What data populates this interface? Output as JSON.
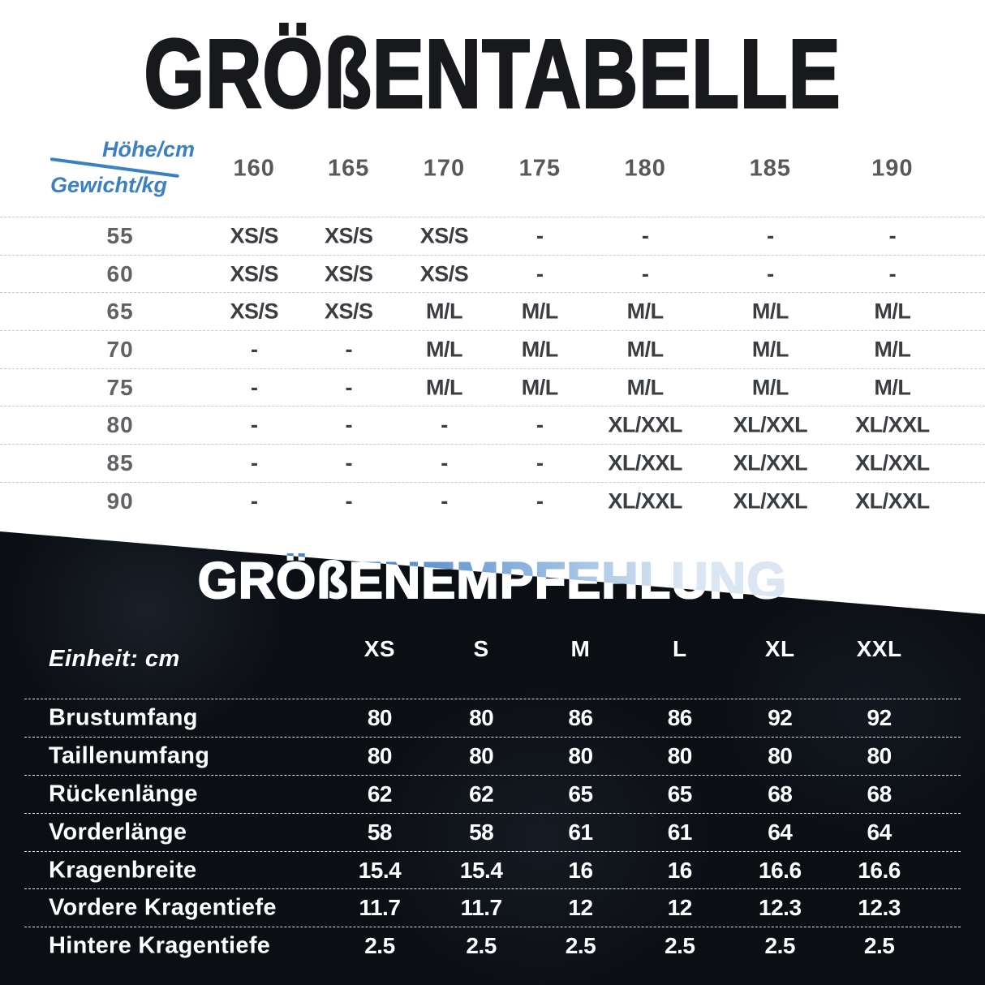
{
  "page": {
    "title": "GRÖßENTABELLE",
    "subtitle": "GRÖßENEMPFEHLUNG"
  },
  "size_table": {
    "axis_height_label": "Höhe/cm",
    "axis_weight_label": "Gewicht/kg",
    "columns": [
      "160",
      "165",
      "170",
      "175",
      "180",
      "185",
      "190"
    ],
    "rows": [
      {
        "label": "55",
        "values": [
          "XS/S",
          "XS/S",
          "XS/S",
          "-",
          "-",
          "-",
          "-"
        ]
      },
      {
        "label": "60",
        "values": [
          "XS/S",
          "XS/S",
          "XS/S",
          "-",
          "-",
          "-",
          "-"
        ]
      },
      {
        "label": "65",
        "values": [
          "XS/S",
          "XS/S",
          "M/L",
          "M/L",
          "M/L",
          "M/L",
          "M/L"
        ]
      },
      {
        "label": "70",
        "values": [
          "-",
          "-",
          "M/L",
          "M/L",
          "M/L",
          "M/L",
          "M/L"
        ]
      },
      {
        "label": "75",
        "values": [
          "-",
          "-",
          "M/L",
          "M/L",
          "M/L",
          "M/L",
          "M/L"
        ]
      },
      {
        "label": "80",
        "values": [
          "-",
          "-",
          "-",
          "-",
          "XL/XXL",
          "XL/XXL",
          "XL/XXL"
        ]
      },
      {
        "label": "85",
        "values": [
          "-",
          "-",
          "-",
          "-",
          "XL/XXL",
          "XL/XXL",
          "XL/XXL"
        ]
      },
      {
        "label": "90",
        "values": [
          "-",
          "-",
          "-",
          "-",
          "XL/XXL",
          "XL/XXL",
          "XL/XXL"
        ]
      }
    ]
  },
  "measure_table": {
    "unit_label": "Einheit: cm",
    "columns": [
      "XS",
      "S",
      "M",
      "L",
      "XL",
      "XXL"
    ],
    "rows": [
      {
        "label": "Brustumfang",
        "values": [
          "80",
          "80",
          "86",
          "86",
          "92",
          "92"
        ]
      },
      {
        "label": "Taillenumfang",
        "values": [
          "80",
          "80",
          "80",
          "80",
          "80",
          "80"
        ]
      },
      {
        "label": "Rückenlänge",
        "values": [
          "62",
          "62",
          "65",
          "65",
          "68",
          "68"
        ]
      },
      {
        "label": "Vorderlänge",
        "values": [
          "58",
          "58",
          "61",
          "61",
          "64",
          "64"
        ]
      },
      {
        "label": "Kragenbreite",
        "values": [
          "15.4",
          "15.4",
          "16",
          "16",
          "16.6",
          "16.6"
        ]
      },
      {
        "label": "Vordere Kragentiefe",
        "values": [
          "11.7",
          "11.7",
          "12",
          "12",
          "12.3",
          "12.3"
        ]
      },
      {
        "label": "Hintere Kragentiefe",
        "values": [
          "2.5",
          "2.5",
          "2.5",
          "2.5",
          "2.5",
          "2.5"
        ]
      }
    ]
  },
  "colors": {
    "accent_blue": "#3d80c2",
    "dark_background": "#0b0e13",
    "title_color": "#17191d",
    "column_header_gray": "#57585c",
    "row_label_gray": "#606266",
    "cell_text_gray": "#3a3d42",
    "top_divider_gray": "#c9c9c9",
    "bottom_divider_white": "#e6e6e6",
    "subtitle_gradient": [
      "#4d86c5",
      "#9cbfe3",
      "#dbe6f3"
    ]
  }
}
